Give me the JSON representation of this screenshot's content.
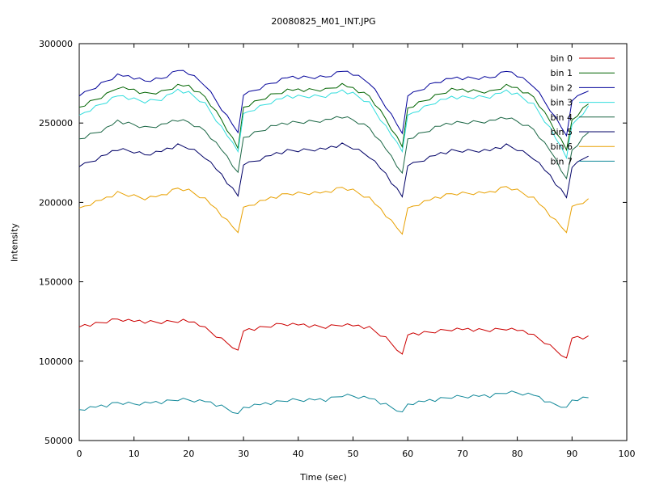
{
  "chart_data": {
    "type": "line",
    "title": "20080825_M01_INT.JPG",
    "xlabel": "Time (sec)",
    "ylabel": "Intensity",
    "xlim": [
      0,
      100
    ],
    "ylim": [
      50000,
      300000
    ],
    "xticks": [
      0,
      10,
      20,
      30,
      40,
      50,
      60,
      70,
      80,
      90,
      100
    ],
    "yticks": [
      50000,
      100000,
      150000,
      200000,
      250000,
      300000
    ],
    "grid": false,
    "legend_position": "top-right",
    "series": [
      {
        "name": "bin 0",
        "color": "#cc0000",
        "anchors": [
          [
            0,
            121500
          ],
          [
            5,
            125000
          ],
          [
            7,
            126500
          ],
          [
            10,
            125000
          ],
          [
            15,
            124500
          ],
          [
            19,
            125500
          ],
          [
            22,
            123000
          ],
          [
            25,
            116000
          ],
          [
            29,
            107000
          ],
          [
            30,
            119000
          ],
          [
            37,
            123500
          ],
          [
            45,
            121500
          ],
          [
            48,
            123000
          ],
          [
            53,
            121000
          ],
          [
            56,
            114500
          ],
          [
            59,
            104500
          ],
          [
            60,
            116500
          ],
          [
            68,
            120000
          ],
          [
            75,
            119500
          ],
          [
            78,
            120500
          ],
          [
            82,
            118000
          ],
          [
            85,
            112000
          ],
          [
            89,
            102000
          ],
          [
            90,
            114500
          ],
          [
            93,
            115000
          ]
        ]
      },
      {
        "name": "bin 1",
        "color": "#006400",
        "anchors": [
          [
            0,
            260000
          ],
          [
            5,
            268000
          ],
          [
            7,
            272500
          ],
          [
            10,
            270500
          ],
          [
            12,
            268500
          ],
          [
            15,
            269500
          ],
          [
            18,
            273500
          ],
          [
            20,
            273000
          ],
          [
            23,
            266500
          ],
          [
            26,
            252000
          ],
          [
            29,
            234000
          ],
          [
            30,
            260000
          ],
          [
            35,
            267500
          ],
          [
            38,
            270500
          ],
          [
            45,
            271000
          ],
          [
            48,
            274000
          ],
          [
            50,
            271500
          ],
          [
            53,
            267000
          ],
          [
            56,
            252500
          ],
          [
            59,
            235000
          ],
          [
            60,
            259500
          ],
          [
            65,
            267000
          ],
          [
            68,
            271000
          ],
          [
            75,
            269500
          ],
          [
            78,
            273500
          ],
          [
            80,
            271500
          ],
          [
            83,
            266500
          ],
          [
            86,
            251000
          ],
          [
            89,
            233000
          ],
          [
            90,
            252000
          ],
          [
            93,
            262000
          ]
        ]
      },
      {
        "name": "bin 2",
        "color": "#000099",
        "anchors": [
          [
            0,
            267000
          ],
          [
            5,
            276500
          ],
          [
            7,
            280000
          ],
          [
            10,
            278500
          ],
          [
            12,
            276500
          ],
          [
            15,
            278000
          ],
          [
            18,
            283000
          ],
          [
            20,
            281500
          ],
          [
            23,
            274000
          ],
          [
            26,
            259000
          ],
          [
            29,
            244000
          ],
          [
            30,
            267500
          ],
          [
            35,
            275000
          ],
          [
            38,
            278500
          ],
          [
            45,
            279000
          ],
          [
            48,
            282500
          ],
          [
            50,
            281000
          ],
          [
            53,
            275500
          ],
          [
            56,
            260500
          ],
          [
            59,
            243500
          ],
          [
            60,
            267000
          ],
          [
            65,
            275500
          ],
          [
            68,
            278000
          ],
          [
            75,
            278500
          ],
          [
            78,
            282500
          ],
          [
            80,
            280000
          ],
          [
            83,
            273500
          ],
          [
            86,
            258500
          ],
          [
            89,
            242000
          ],
          [
            90,
            264000
          ],
          [
            93,
            271000
          ]
        ]
      },
      {
        "name": "bin 3",
        "color": "#33dddd",
        "anchors": [
          [
            0,
            255000
          ],
          [
            5,
            263500
          ],
          [
            7,
            267000
          ],
          [
            10,
            265000
          ],
          [
            12,
            263500
          ],
          [
            15,
            265000
          ],
          [
            18,
            270500
          ],
          [
            20,
            269000
          ],
          [
            23,
            262000
          ],
          [
            26,
            247000
          ],
          [
            29,
            232000
          ],
          [
            30,
            256000
          ],
          [
            35,
            263000
          ],
          [
            38,
            266500
          ],
          [
            45,
            267000
          ],
          [
            48,
            270000
          ],
          [
            50,
            268500
          ],
          [
            53,
            262500
          ],
          [
            56,
            247500
          ],
          [
            59,
            232000
          ],
          [
            60,
            255000
          ],
          [
            65,
            263000
          ],
          [
            68,
            266000
          ],
          [
            75,
            266500
          ],
          [
            78,
            270000
          ],
          [
            80,
            268000
          ],
          [
            83,
            261500
          ],
          [
            86,
            246500
          ],
          [
            89,
            228000
          ],
          [
            90,
            249000
          ],
          [
            93,
            260000
          ]
        ]
      },
      {
        "name": "bin 4",
        "color": "#1a6644",
        "anchors": [
          [
            0,
            240000
          ],
          [
            5,
            246500
          ],
          [
            7,
            251000
          ],
          [
            10,
            249000
          ],
          [
            12,
            247000
          ],
          [
            15,
            248500
          ],
          [
            18,
            252000
          ],
          [
            20,
            250500
          ],
          [
            23,
            245000
          ],
          [
            26,
            233000
          ],
          [
            29,
            219000
          ],
          [
            30,
            241000
          ],
          [
            35,
            247500
          ],
          [
            38,
            250000
          ],
          [
            45,
            251500
          ],
          [
            48,
            254000
          ],
          [
            50,
            252000
          ],
          [
            53,
            247000
          ],
          [
            56,
            233500
          ],
          [
            59,
            218500
          ],
          [
            60,
            240000
          ],
          [
            65,
            247000
          ],
          [
            68,
            250000
          ],
          [
            75,
            251000
          ],
          [
            78,
            253500
          ],
          [
            80,
            251000
          ],
          [
            83,
            246000
          ],
          [
            86,
            232500
          ],
          [
            89,
            215000
          ],
          [
            90,
            233000
          ],
          [
            93,
            244000
          ]
        ]
      },
      {
        "name": "bin 5",
        "color": "#000066",
        "anchors": [
          [
            0,
            222500
          ],
          [
            5,
            230000
          ],
          [
            7,
            233500
          ],
          [
            10,
            232000
          ],
          [
            12,
            230000
          ],
          [
            15,
            232000
          ],
          [
            18,
            236000
          ],
          [
            20,
            234500
          ],
          [
            23,
            228500
          ],
          [
            26,
            217000
          ],
          [
            29,
            204000
          ],
          [
            30,
            223500
          ],
          [
            35,
            229500
          ],
          [
            38,
            232500
          ],
          [
            45,
            233500
          ],
          [
            48,
            236500
          ],
          [
            50,
            234500
          ],
          [
            53,
            229000
          ],
          [
            56,
            217500
          ],
          [
            59,
            203500
          ],
          [
            60,
            223000
          ],
          [
            65,
            229500
          ],
          [
            68,
            232500
          ],
          [
            75,
            232500
          ],
          [
            78,
            236000
          ],
          [
            80,
            233500
          ],
          [
            83,
            228000
          ],
          [
            86,
            216500
          ],
          [
            89,
            203000
          ],
          [
            90,
            222000
          ],
          [
            93,
            230000
          ]
        ]
      },
      {
        "name": "bin 6",
        "color": "#e8a000",
        "anchors": [
          [
            0,
            196500
          ],
          [
            5,
            202500
          ],
          [
            7,
            206000
          ],
          [
            10,
            204000
          ],
          [
            12,
            202500
          ],
          [
            15,
            204000
          ],
          [
            18,
            209000
          ],
          [
            20,
            207500
          ],
          [
            23,
            202000
          ],
          [
            26,
            192000
          ],
          [
            29,
            181000
          ],
          [
            30,
            197000
          ],
          [
            35,
            202500
          ],
          [
            38,
            205500
          ],
          [
            45,
            206000
          ],
          [
            48,
            209500
          ],
          [
            50,
            207500
          ],
          [
            53,
            202500
          ],
          [
            56,
            192000
          ],
          [
            59,
            180000
          ],
          [
            60,
            196500
          ],
          [
            65,
            202500
          ],
          [
            68,
            205500
          ],
          [
            75,
            206000
          ],
          [
            78,
            210000
          ],
          [
            80,
            207500
          ],
          [
            83,
            202500
          ],
          [
            86,
            192000
          ],
          [
            89,
            181000
          ],
          [
            90,
            197500
          ],
          [
            93,
            201500
          ]
        ]
      },
      {
        "name": "bin 7",
        "color": "#118899",
        "anchors": [
          [
            0,
            69500
          ],
          [
            5,
            72000
          ],
          [
            7,
            74000
          ],
          [
            10,
            73000
          ],
          [
            15,
            74000
          ],
          [
            18,
            76000
          ],
          [
            20,
            75500
          ],
          [
            23,
            74500
          ],
          [
            26,
            71500
          ],
          [
            29,
            67000
          ],
          [
            30,
            71000
          ],
          [
            35,
            73500
          ],
          [
            38,
            75500
          ],
          [
            45,
            75500
          ],
          [
            48,
            78500
          ],
          [
            50,
            78000
          ],
          [
            53,
            76500
          ],
          [
            56,
            72500
          ],
          [
            59,
            68000
          ],
          [
            60,
            73000
          ],
          [
            65,
            75500
          ],
          [
            68,
            77500
          ],
          [
            75,
            78000
          ],
          [
            78,
            80500
          ],
          [
            80,
            80000
          ],
          [
            83,
            78500
          ],
          [
            86,
            73500
          ],
          [
            89,
            71000
          ],
          [
            90,
            75500
          ],
          [
            93,
            77000
          ]
        ]
      }
    ]
  }
}
